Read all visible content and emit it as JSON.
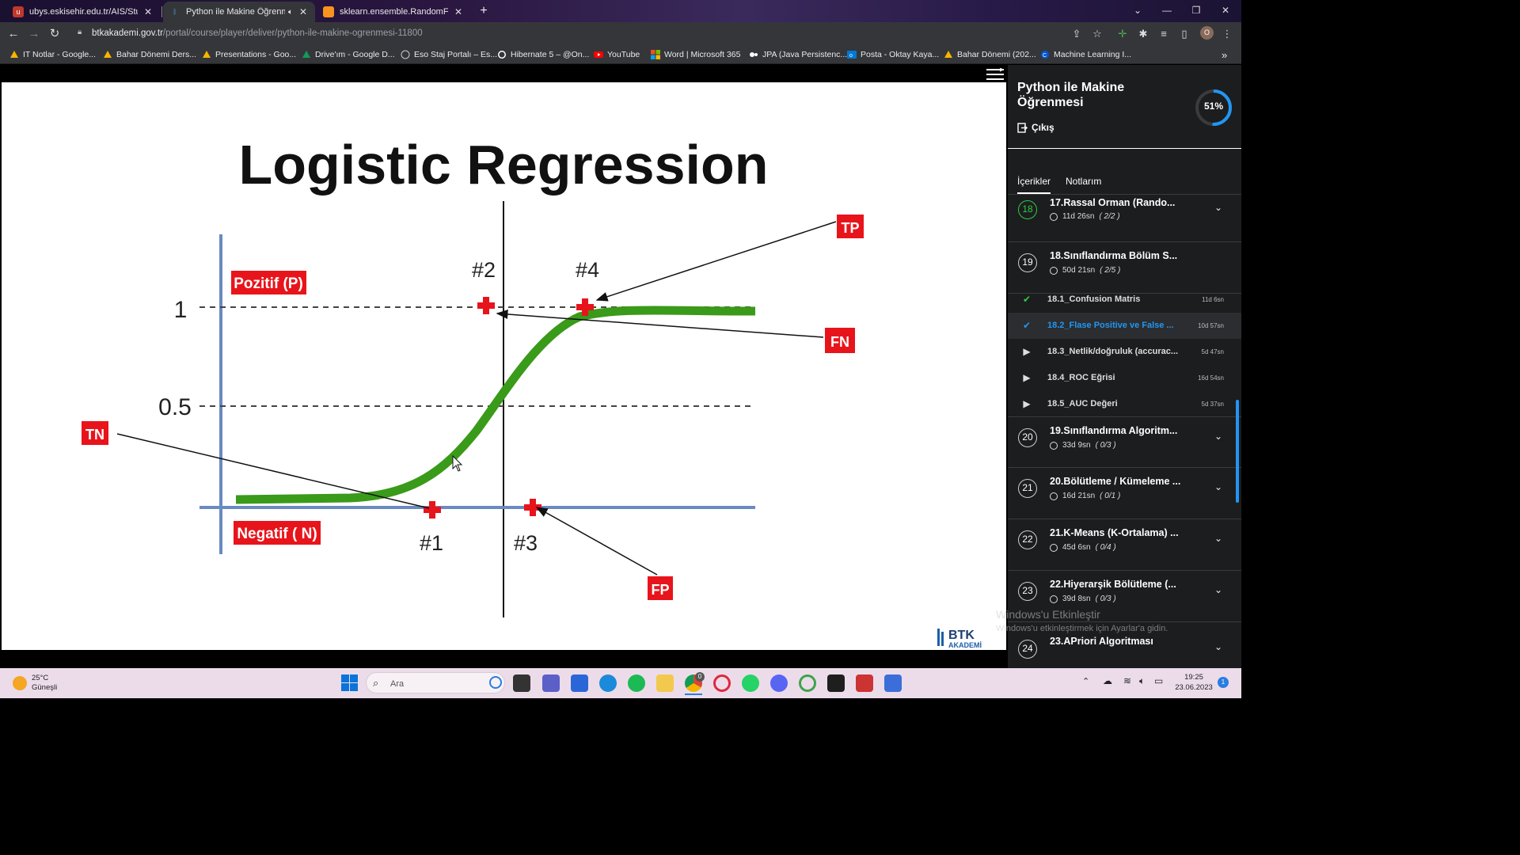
{
  "browser": {
    "tabs": [
      {
        "title": "ubys.eskisehir.edu.tr/AIS/Student",
        "active": false
      },
      {
        "title": "Python ile Makine Öğrenmesi",
        "active": true
      },
      {
        "title": "sklearn.ensemble.RandomForestC",
        "active": false
      }
    ],
    "url_host": "btkakademi.gov.tr",
    "url_path": "/portal/course/player/deliver/python-ile-makine-ogrenmesi-11800",
    "profile_initial": "O",
    "bookmarks": [
      "IT Notlar - Google...",
      "Bahar Dönemi Ders...",
      "Presentations - Goo...",
      "Drive'ım - Google D...",
      "Eso Staj Portalı – Es...",
      "Hibernate 5 – @On...",
      "YouTube",
      "Word | Microsoft 365",
      "JPA (Java Persistenc...",
      "Posta - Oktay Kaya...",
      "Bahar Dönemi (202...",
      "Machine Learning I..."
    ]
  },
  "slide": {
    "title": "Logistic Regression",
    "label_positive": "Pozitif (P)",
    "label_negative": "Negatif ( N)",
    "y_tick_1": "1",
    "y_tick_half": "0.5",
    "points": [
      "#1",
      "#2",
      "#3",
      "#4"
    ],
    "tags": {
      "tp": "TP",
      "fn": "FN",
      "tn": "TN",
      "fp": "FP"
    },
    "logo_text": "BTK",
    "logo_sub": "AKADEMİ"
  },
  "sidebar": {
    "course_title": "Python ile Makine Öğrenmesi",
    "exit_label": "Çıkış",
    "progress": "51%",
    "progress_fraction": 0.51,
    "tabs": [
      "İçerikler",
      "Notlarım"
    ],
    "sections_top": [
      {
        "num": "18",
        "title": "17.Rassal Orman (Rando...",
        "duration": "11d 26sn",
        "count": "( 2/2 )"
      },
      {
        "num": "19",
        "title": "18.Sınıflandırma Bölüm S...",
        "duration": "50d 21sn",
        "count": "( 2/5 )"
      }
    ],
    "lessons": [
      {
        "title": "18.1_Confusion Matris",
        "duration": "11d 6sn",
        "state": "done"
      },
      {
        "title": "18.2_Flase Positive ve False ...",
        "duration": "10d 57sn",
        "state": "current"
      },
      {
        "title": "18.3_Netlik/doğruluk (accurac...",
        "duration": "5d 47sn",
        "state": "todo"
      },
      {
        "title": "18.4_ROC Eğrisi",
        "duration": "16d 54sn",
        "state": "todo"
      },
      {
        "title": "18.5_AUC Değeri",
        "duration": "5d 37sn",
        "state": "todo"
      }
    ],
    "sections_bottom": [
      {
        "num": "20",
        "title": "19.Sınıflandırma Algoritm...",
        "duration": "33d 9sn",
        "count": "( 0/3 )"
      },
      {
        "num": "21",
        "title": "20.Bölütleme / Kümeleme ...",
        "duration": "16d 21sn",
        "count": "( 0/1 )"
      },
      {
        "num": "22",
        "title": "21.K-Means (K-Ortalama) ...",
        "duration": "45d 6sn",
        "count": "( 0/4 )"
      },
      {
        "num": "23",
        "title": "22.Hiyerarşik Bölütleme (...",
        "duration": "39d 8sn",
        "count": "( 0/3 )"
      },
      {
        "num": "24",
        "title": "23.APriori Algoritması",
        "duration": "",
        "count": ""
      }
    ],
    "watermark_title": "Windows'u Etkinleştir",
    "watermark_sub": "Windows'u etkinleştirmek için Ayarlar'a gidin."
  },
  "taskbar": {
    "temp": "25°C",
    "weather": "Güneşli",
    "search_placeholder": "Ara",
    "time": "19:25",
    "date": "23.06.2023",
    "notif_count": "1",
    "chrome_badge": "0"
  }
}
